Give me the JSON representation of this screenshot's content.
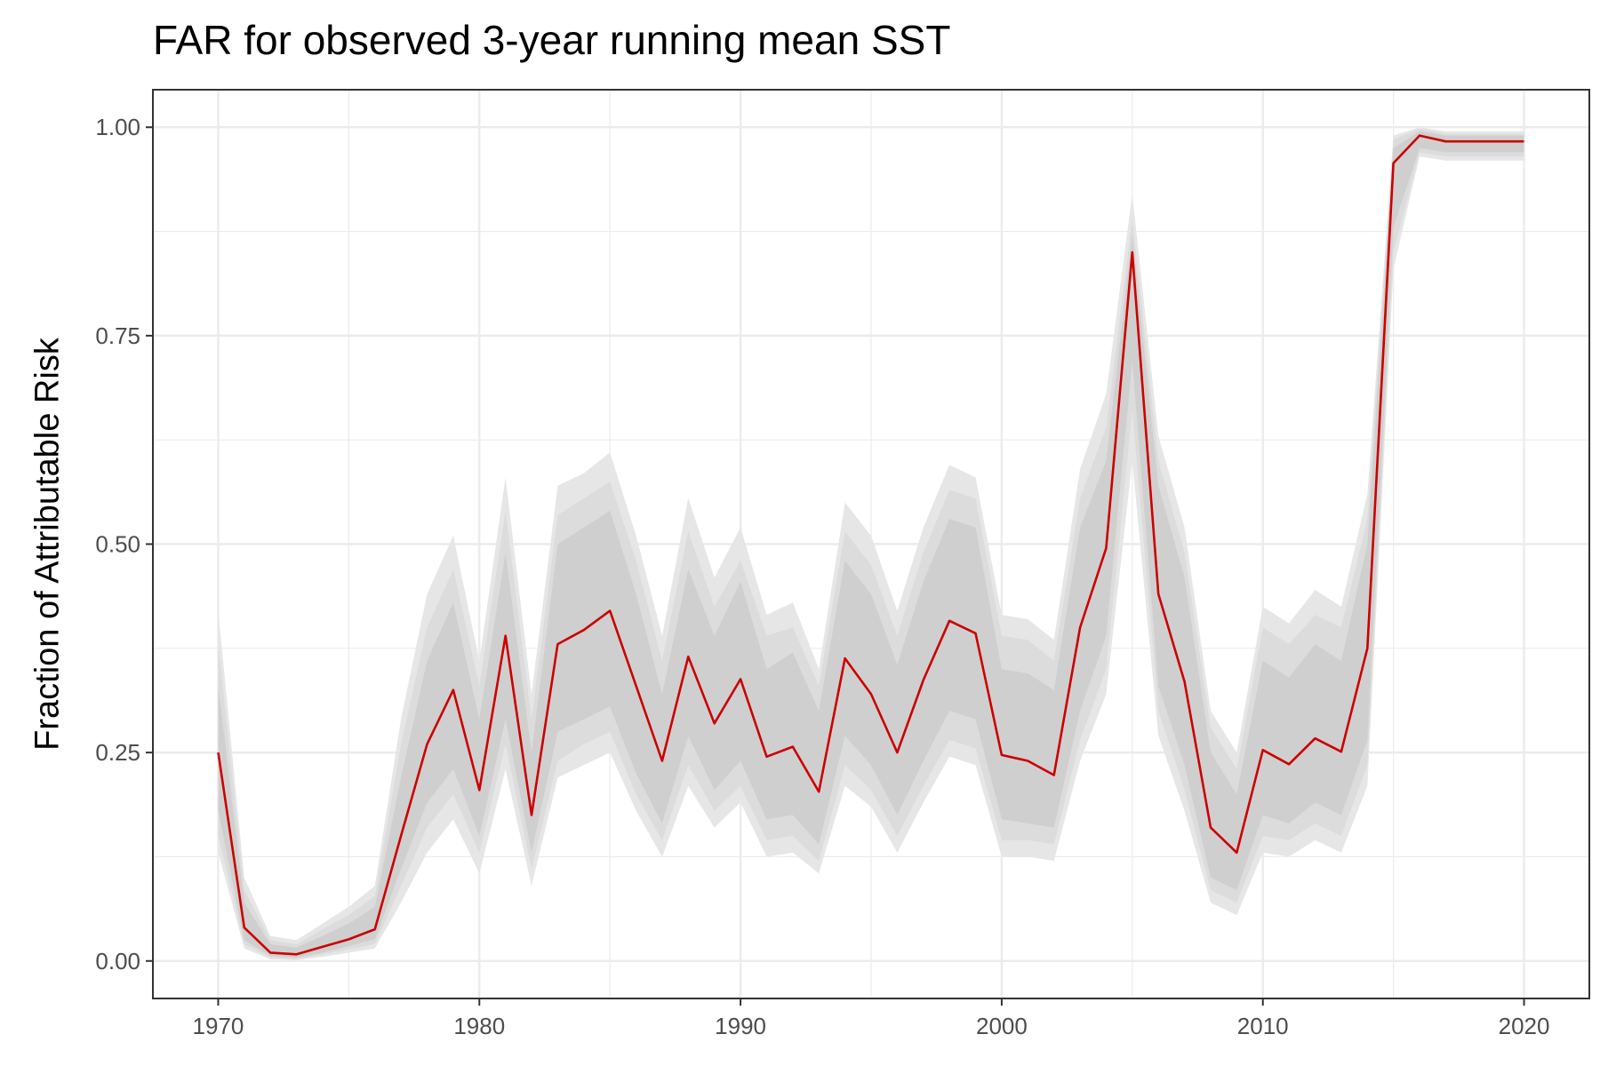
{
  "chart_data": {
    "type": "line",
    "title": "FAR for observed 3-year running mean SST",
    "xlabel": "",
    "ylabel": "Fraction of Attributable Risk",
    "xlim": [
      1967.5,
      2022.5
    ],
    "ylim": [
      -0.045,
      1.045
    ],
    "x_ticks": [
      1970,
      1980,
      1990,
      2000,
      2010,
      2020
    ],
    "x_tick_labels": [
      "1970",
      "1980",
      "1990",
      "2000",
      "2010",
      "2020"
    ],
    "y_ticks": [
      0.0,
      0.25,
      0.5,
      0.75,
      1.0
    ],
    "y_tick_labels": [
      "0.00",
      "0.25",
      "0.50",
      "0.75",
      "1.00"
    ],
    "grid": true,
    "colors": {
      "line": "#cc0000",
      "band_outer": "#e6e6e6",
      "band_middle": "#dcdcdc",
      "band_inner": "#cfcfcf",
      "grid": "#ebebeb",
      "axis": "#333333"
    },
    "x": [
      1970,
      1971,
      1972,
      1973,
      1974,
      1975,
      1976,
      1977,
      1978,
      1979,
      1980,
      1981,
      1982,
      1983,
      1984,
      1985,
      1986,
      1987,
      1988,
      1989,
      1990,
      1991,
      1992,
      1993,
      1994,
      1995,
      1996,
      1997,
      1998,
      1999,
      2000,
      2001,
      2002,
      2003,
      2004,
      2005,
      2006,
      2007,
      2008,
      2009,
      2010,
      2011,
      2012,
      2013,
      2014,
      2015,
      2016,
      2017,
      2018,
      2019,
      2020
    ],
    "series": [
      {
        "values": [
          0.25,
          0.04,
          0.01,
          0.008,
          0.017,
          0.026,
          0.038,
          0.15,
          0.26,
          0.325,
          0.205,
          0.39,
          0.175,
          0.38,
          0.397,
          0.42,
          0.33,
          0.24,
          0.365,
          0.285,
          0.338,
          0.245,
          0.257,
          0.203,
          0.363,
          0.32,
          0.25,
          0.337,
          0.408,
          0.393,
          0.247,
          0.24,
          0.223,
          0.4,
          0.495,
          0.85,
          0.44,
          0.335,
          0.16,
          0.13,
          0.253,
          0.236,
          0.267,
          0.251,
          0.375,
          0.957,
          0.99,
          0.983,
          0.983,
          0.983,
          0.983
        ]
      }
    ],
    "bands": [
      {
        "name": "outer",
        "lower": [
          0.13,
          0.015,
          0.002,
          0.001,
          0.005,
          0.01,
          0.015,
          0.07,
          0.13,
          0.17,
          0.105,
          0.23,
          0.09,
          0.22,
          0.235,
          0.25,
          0.18,
          0.125,
          0.21,
          0.16,
          0.19,
          0.125,
          0.13,
          0.105,
          0.21,
          0.185,
          0.13,
          0.19,
          0.245,
          0.235,
          0.125,
          0.125,
          0.12,
          0.24,
          0.32,
          0.6,
          0.27,
          0.18,
          0.07,
          0.055,
          0.13,
          0.125,
          0.145,
          0.13,
          0.21,
          0.83,
          0.965,
          0.96,
          0.96,
          0.96,
          0.96
        ],
        "upper": [
          0.42,
          0.1,
          0.03,
          0.025,
          0.045,
          0.065,
          0.09,
          0.29,
          0.44,
          0.51,
          0.36,
          0.58,
          0.32,
          0.57,
          0.585,
          0.61,
          0.51,
          0.39,
          0.555,
          0.46,
          0.52,
          0.415,
          0.43,
          0.35,
          0.55,
          0.51,
          0.42,
          0.52,
          0.595,
          0.58,
          0.415,
          0.41,
          0.385,
          0.59,
          0.68,
          0.92,
          0.63,
          0.52,
          0.3,
          0.25,
          0.425,
          0.405,
          0.445,
          0.425,
          0.56,
          0.99,
          1.0,
          0.995,
          0.995,
          0.995,
          0.995
        ]
      },
      {
        "name": "middle",
        "lower": [
          0.15,
          0.02,
          0.004,
          0.002,
          0.008,
          0.014,
          0.02,
          0.09,
          0.16,
          0.2,
          0.13,
          0.26,
          0.11,
          0.24,
          0.26,
          0.275,
          0.2,
          0.145,
          0.235,
          0.18,
          0.21,
          0.145,
          0.15,
          0.12,
          0.235,
          0.205,
          0.15,
          0.21,
          0.265,
          0.255,
          0.145,
          0.145,
          0.14,
          0.265,
          0.35,
          0.66,
          0.3,
          0.205,
          0.085,
          0.07,
          0.15,
          0.145,
          0.165,
          0.15,
          0.235,
          0.85,
          0.97,
          0.965,
          0.965,
          0.965,
          0.965
        ],
        "upper": [
          0.38,
          0.085,
          0.025,
          0.02,
          0.038,
          0.055,
          0.078,
          0.26,
          0.4,
          0.47,
          0.33,
          0.54,
          0.29,
          0.535,
          0.555,
          0.575,
          0.48,
          0.36,
          0.515,
          0.425,
          0.48,
          0.39,
          0.4,
          0.33,
          0.515,
          0.475,
          0.39,
          0.49,
          0.565,
          0.555,
          0.39,
          0.385,
          0.36,
          0.555,
          0.64,
          0.89,
          0.6,
          0.49,
          0.28,
          0.23,
          0.4,
          0.38,
          0.415,
          0.4,
          0.53,
          0.985,
          0.998,
          0.992,
          0.992,
          0.992,
          0.992
        ]
      },
      {
        "name": "inner",
        "lower": [
          0.18,
          0.025,
          0.006,
          0.004,
          0.01,
          0.018,
          0.026,
          0.11,
          0.19,
          0.23,
          0.15,
          0.29,
          0.13,
          0.275,
          0.29,
          0.305,
          0.225,
          0.165,
          0.27,
          0.205,
          0.24,
          0.17,
          0.175,
          0.14,
          0.27,
          0.235,
          0.175,
          0.24,
          0.3,
          0.29,
          0.17,
          0.165,
          0.16,
          0.3,
          0.39,
          0.72,
          0.33,
          0.235,
          0.1,
          0.085,
          0.175,
          0.165,
          0.19,
          0.175,
          0.265,
          0.88,
          0.975,
          0.97,
          0.97,
          0.97,
          0.97
        ],
        "upper": [
          0.33,
          0.07,
          0.02,
          0.016,
          0.03,
          0.045,
          0.065,
          0.22,
          0.36,
          0.43,
          0.29,
          0.49,
          0.25,
          0.5,
          0.52,
          0.54,
          0.44,
          0.32,
          0.47,
          0.39,
          0.455,
          0.35,
          0.37,
          0.3,
          0.48,
          0.44,
          0.355,
          0.455,
          0.53,
          0.52,
          0.35,
          0.345,
          0.325,
          0.52,
          0.6,
          0.87,
          0.57,
          0.46,
          0.25,
          0.2,
          0.36,
          0.34,
          0.38,
          0.36,
          0.5,
          0.975,
          0.995,
          0.99,
          0.99,
          0.99,
          0.99
        ]
      }
    ]
  }
}
